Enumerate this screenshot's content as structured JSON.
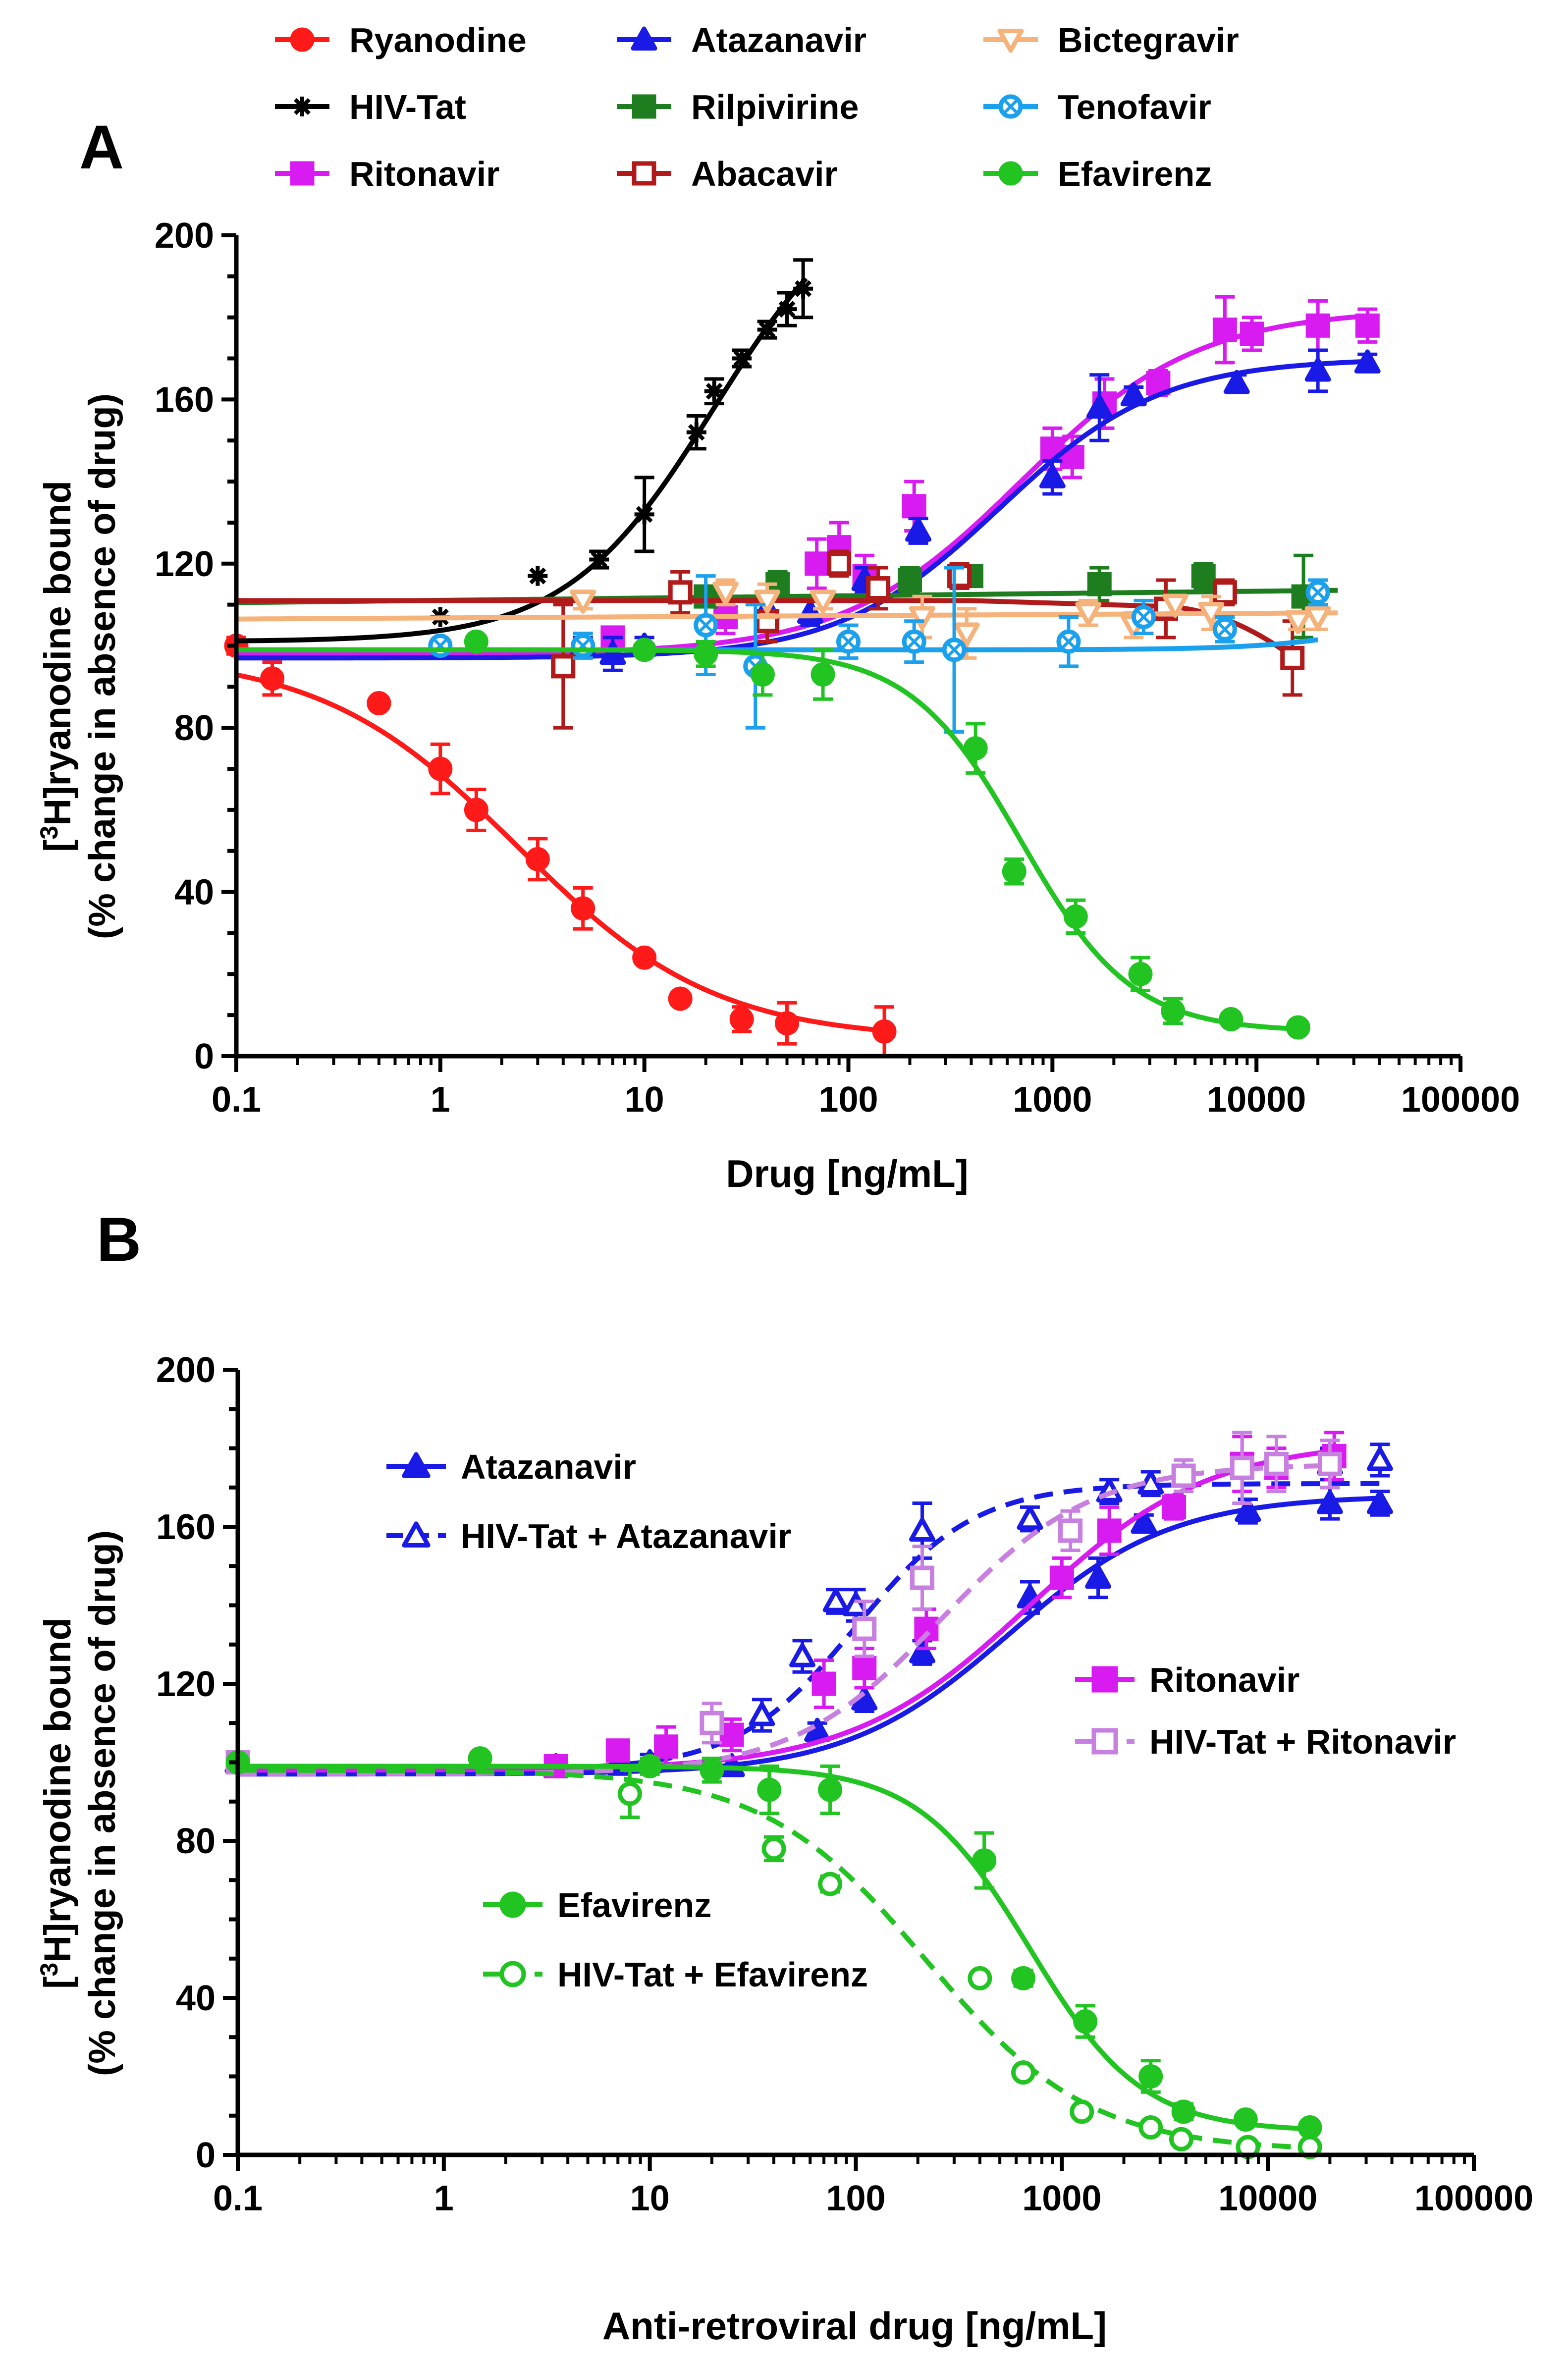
{
  "chart_data": [
    {
      "type": "scatter",
      "panel": "A",
      "title": "",
      "xlabel": "Drug [ng/mL]",
      "ylabel_line1_pre": "[",
      "ylabel_line1_sup": "3",
      "ylabel_line1_post": "H]ryanodine bound",
      "ylabel_line2": "(% change in absence of drug)",
      "x_scale": "log",
      "xlim": [
        0.1,
        100000
      ],
      "ylim": [
        0,
        200
      ],
      "x_tick_labels": [
        "0.1",
        "1",
        "10",
        "100",
        "1000",
        "10000",
        "100000"
      ],
      "y_tick_labels": [
        "0",
        "40",
        "80",
        "120",
        "160",
        "200"
      ],
      "legend_position": "top",
      "series": [
        {
          "name": "Ryanodine",
          "color": "#ff1a1a",
          "marker": "circle",
          "filled": true,
          "dashed": false,
          "x": [
            0.1,
            0.15,
            0.5,
            1,
            1.5,
            3,
            5,
            10,
            15,
            30,
            50,
            150
          ],
          "y": [
            100,
            92,
            86,
            70,
            60,
            48,
            36,
            24,
            14,
            9,
            8,
            6
          ],
          "err": [
            2,
            4,
            1,
            6,
            5,
            5,
            5,
            1,
            1,
            3,
            5,
            6
          ],
          "curve": {
            "kind": "decrease",
            "top": 98,
            "bottom": 4,
            "ec50": 2.4,
            "hill": 0.9,
            "xmin": 0.1,
            "xmax": 150
          }
        },
        {
          "name": "HIV-Tat",
          "color": "#000000",
          "marker": "star",
          "filled": true,
          "dashed": false,
          "x": [
            1,
            3,
            6,
            10,
            18,
            22,
            30,
            40,
            50,
            60
          ],
          "y": [
            107,
            117,
            121,
            132,
            152,
            162,
            170,
            177,
            182,
            187
          ],
          "err": [
            1,
            1,
            2,
            9,
            4,
            3,
            2,
            2,
            4,
            7
          ],
          "curve": {
            "kind": "increase",
            "top": 215,
            "bottom": 101,
            "ec50": 22,
            "hill": 1.2,
            "xmin": 0.1,
            "xmax": 62
          }
        },
        {
          "name": "Ritonavir",
          "color": "#d81bf0",
          "marker": "square",
          "filled": true,
          "dashed": false,
          "x": [
            7,
            25,
            70,
            90,
            120,
            210,
            1000,
            1250,
            1800,
            3300,
            7000,
            9500,
            20000,
            35000
          ],
          "y": [
            102,
            107,
            120,
            124,
            117,
            134,
            148,
            146,
            159,
            164,
            177,
            176,
            178,
            178
          ],
          "err": [
            2,
            4,
            6,
            6,
            5,
            6,
            5,
            5,
            6,
            3,
            8,
            4,
            6,
            4
          ],
          "curve": {
            "kind": "increase",
            "top": 182,
            "bottom": 98,
            "ec50": 700,
            "hill": 1.0,
            "xmin": 0.1,
            "xmax": 35000
          }
        },
        {
          "name": "Atazanavir",
          "color": "#1a1ae6",
          "marker": "triangle",
          "filled": true,
          "dashed": false,
          "x": [
            5,
            7,
            10,
            40,
            65,
            120,
            220,
            1000,
            1700,
            2500,
            8000,
            20000,
            35000
          ],
          "y": [
            100,
            98,
            100,
            109,
            108,
            116,
            128,
            141,
            158,
            161,
            164,
            167,
            169
          ],
          "err": [
            2,
            4,
            2,
            3,
            3,
            3,
            3,
            4,
            8,
            2,
            2,
            5,
            2
          ],
          "curve": {
            "kind": "increase",
            "top": 170,
            "bottom": 97,
            "ec50": 550,
            "hill": 1.1,
            "xmin": 0.1,
            "xmax": 35000
          }
        },
        {
          "name": "Rilpivirine",
          "color": "#1e7d1e",
          "marker": "square",
          "filled": true,
          "dashed": false,
          "x": [
            20,
            45,
            200,
            400,
            1700,
            5500,
            17000
          ],
          "y": [
            112,
            115,
            116,
            117,
            115,
            117,
            112
          ],
          "err": [
            2,
            3,
            3,
            2,
            4,
            3,
            10
          ],
          "curve": {
            "kind": "flat",
            "y0": 110.5,
            "y1": 113.5,
            "xmin": 0.1,
            "xmax": 25000
          }
        },
        {
          "name": "Abacavir",
          "color": "#b01a1a",
          "marker": "square",
          "filled": false,
          "dashed": false,
          "x": [
            4,
            15,
            40,
            90,
            140,
            350,
            3600,
            7000,
            15000
          ],
          "y": [
            95,
            113,
            106,
            120,
            114,
            117,
            109,
            113,
            97
          ],
          "err": [
            15,
            5,
            5,
            3,
            5,
            3,
            7,
            3,
            9
          ],
          "curve": {
            "kind": "abacavir",
            "xmin": 0.1,
            "xmax": 15000
          }
        },
        {
          "name": "Bictegravir",
          "color": "#f5b27a",
          "marker": "triangle-down",
          "filled": false,
          "dashed": false,
          "x": [
            5,
            25,
            40,
            75,
            230,
            380,
            1500,
            2500,
            4000,
            6000,
            16000,
            20000
          ],
          "y": [
            111,
            113,
            111,
            111,
            107,
            103,
            108,
            105,
            110,
            108,
            106,
            107
          ],
          "err": [
            2,
            3,
            4,
            2,
            5,
            6,
            3,
            3,
            2,
            4,
            2,
            3
          ],
          "curve": {
            "kind": "flat",
            "y0": 106.5,
            "y1": 108,
            "xmin": 0.1,
            "xmax": 25000
          }
        },
        {
          "name": "Tenofavir",
          "color": "#1aa0ec",
          "marker": "circle-cross",
          "filled": false,
          "dashed": false,
          "x": [
            1,
            5,
            20,
            35,
            100,
            210,
            330,
            1200,
            2800,
            7000,
            20000
          ],
          "y": [
            100,
            100,
            105,
            95,
            101,
            101,
            99,
            101,
            107,
            104,
            113
          ],
          "err": [
            1,
            3,
            12,
            15,
            4,
            5,
            20,
            6,
            4,
            3,
            3
          ],
          "curve": {
            "kind": "rise",
            "base": 99,
            "amp": 14,
            "ec50": 60000,
            "hill": 1.4,
            "xmin": 0.1,
            "xmax": 20000
          }
        },
        {
          "name": "Efavirenz",
          "color": "#22c422",
          "marker": "circle",
          "filled": true,
          "dashed": false,
          "x": [
            1.5,
            10,
            20,
            38,
            75,
            420,
            650,
            1300,
            2700,
            3900,
            7500,
            16000
          ],
          "y": [
            101,
            99,
            98,
            93,
            93,
            75,
            45,
            34,
            20,
            11,
            9,
            7
          ],
          "err": [
            1,
            1,
            3,
            5,
            6,
            6,
            3,
            4,
            4,
            3,
            1,
            1
          ],
          "curve": {
            "kind": "decrease",
            "top": 99,
            "bottom": 6,
            "ec50": 700,
            "hill": 1.6,
            "xmin": 0.1,
            "xmax": 16000
          }
        }
      ]
    },
    {
      "type": "scatter",
      "panel": "B",
      "title": "",
      "xlabel": "Anti-retroviral drug [ng/mL]",
      "ylabel_line1_pre": "[",
      "ylabel_line1_sup": "3",
      "ylabel_line1_post": "H]ryanodine bound",
      "ylabel_line2": "(% change in absence of drug)",
      "x_scale": "log",
      "xlim": [
        0.1,
        100000
      ],
      "ylim": [
        0,
        200
      ],
      "x_tick_labels": [
        "0.1",
        "1",
        "10",
        "100",
        "1000",
        "10000",
        "100000"
      ],
      "y_tick_labels": [
        "0",
        "40",
        "80",
        "120",
        "160",
        "200"
      ],
      "legend_position": "inside",
      "series": [
        {
          "name": "Atazanavir",
          "color": "#1a1ae6",
          "marker": "triangle",
          "filled": true,
          "dashed": false,
          "x": [
            0.1,
            3.5,
            7,
            10,
            25,
            65,
            110,
            210,
            700,
            1500,
            2500,
            8000,
            20000,
            35000
          ],
          "y": [
            100,
            99,
            100,
            100,
            99,
            108,
            116,
            128,
            142,
            147,
            161,
            164,
            166,
            166
          ],
          "err": [
            1,
            1,
            3,
            2,
            2,
            2,
            3,
            3,
            4,
            5,
            2,
            3,
            4,
            3
          ],
          "curve": {
            "kind": "increase",
            "top": 168,
            "bottom": 97,
            "ec50": 550,
            "hill": 1.1,
            "xmin": 0.1,
            "xmax": 35000
          }
        },
        {
          "name": "HIV-Tat + Atazanavir",
          "color": "#1a1ae6",
          "marker": "triangle",
          "filled": false,
          "dashed": true,
          "x": [
            0.1,
            35,
            55,
            80,
            100,
            210,
            700,
            1700,
            2700,
            20000,
            35000
          ],
          "y": [
            100,
            112,
            127,
            141,
            140,
            159,
            162,
            169,
            171,
            176,
            177
          ],
          "err": [
            1,
            4,
            4,
            3,
            4,
            7,
            3,
            3,
            3,
            4,
            4
          ],
          "curve": {
            "kind": "increase",
            "top": 171,
            "bottom": 98,
            "ec50": 100,
            "hill": 1.5,
            "xmin": 0.1,
            "xmax": 35000
          }
        },
        {
          "name": "Ritonavir",
          "color": "#d81bf0",
          "marker": "square",
          "filled": true,
          "dashed": false,
          "x": [
            0.1,
            3.5,
            7,
            12,
            25,
            70,
            110,
            220,
            1000,
            1700,
            3500,
            7500,
            11000,
            21000
          ],
          "y": [
            100,
            99,
            103,
            104,
            107,
            120,
            124,
            134,
            147,
            159,
            165,
            176,
            175,
            178
          ],
          "err": [
            1,
            1,
            2,
            5,
            4,
            6,
            5,
            5,
            5,
            6,
            3,
            7,
            5,
            6
          ],
          "curve": {
            "kind": "increase",
            "top": 182,
            "bottom": 98,
            "ec50": 700,
            "hill": 1.0,
            "xmin": 0.1,
            "xmax": 21000
          }
        },
        {
          "name": "HIV-Tat + Ritonavir",
          "color": "#c77fe0",
          "marker": "square",
          "filled": false,
          "dashed": true,
          "x": [
            0.1,
            20,
            110,
            210,
            1100,
            3900,
            7500,
            11000,
            20000
          ],
          "y": [
            100,
            110,
            134,
            147,
            159,
            173,
            175,
            176,
            176
          ],
          "err": [
            1,
            5,
            7,
            8,
            5,
            4,
            9,
            7,
            6
          ],
          "curve": {
            "kind": "increase",
            "top": 176,
            "bottom": 97,
            "ec50": 260,
            "hill": 1.2,
            "xmin": 0.1,
            "xmax": 21000
          }
        },
        {
          "name": "Efavirenz",
          "color": "#22c422",
          "marker": "circle",
          "filled": true,
          "dashed": false,
          "x": [
            0.1,
            1.5,
            10,
            20,
            38,
            75,
            420,
            650,
            1300,
            2700,
            3900,
            7800,
            16000
          ],
          "y": [
            100,
            101,
            99,
            98,
            93,
            93,
            75,
            45,
            34,
            20,
            11,
            9,
            7
          ],
          "err": [
            1,
            1,
            2,
            3,
            6,
            6,
            7,
            2,
            4,
            4,
            2,
            1,
            1
          ],
          "curve": {
            "kind": "decrease",
            "top": 99,
            "bottom": 6,
            "ec50": 700,
            "hill": 1.6,
            "xmin": 0.1,
            "xmax": 16000
          }
        },
        {
          "name": "HIV-Tat + Efavirenz",
          "color": "#22c422",
          "marker": "circle",
          "filled": false,
          "dashed": true,
          "x": [
            8,
            40,
            75,
            400,
            650,
            1250,
            2700,
            3800,
            8000,
            16000
          ],
          "y": [
            92,
            78,
            69,
            45,
            21,
            11,
            7,
            4,
            2,
            2
          ],
          "err": [
            6,
            3,
            2,
            1,
            1,
            1,
            1,
            1,
            1,
            1
          ],
          "curve": {
            "kind": "decrease",
            "top": 98,
            "bottom": 1,
            "ec50": 220,
            "hill": 1.1,
            "xmin": 0.1,
            "xmax": 16000
          }
        }
      ]
    }
  ],
  "panel_labels": {
    "a": "A",
    "b": "B"
  }
}
